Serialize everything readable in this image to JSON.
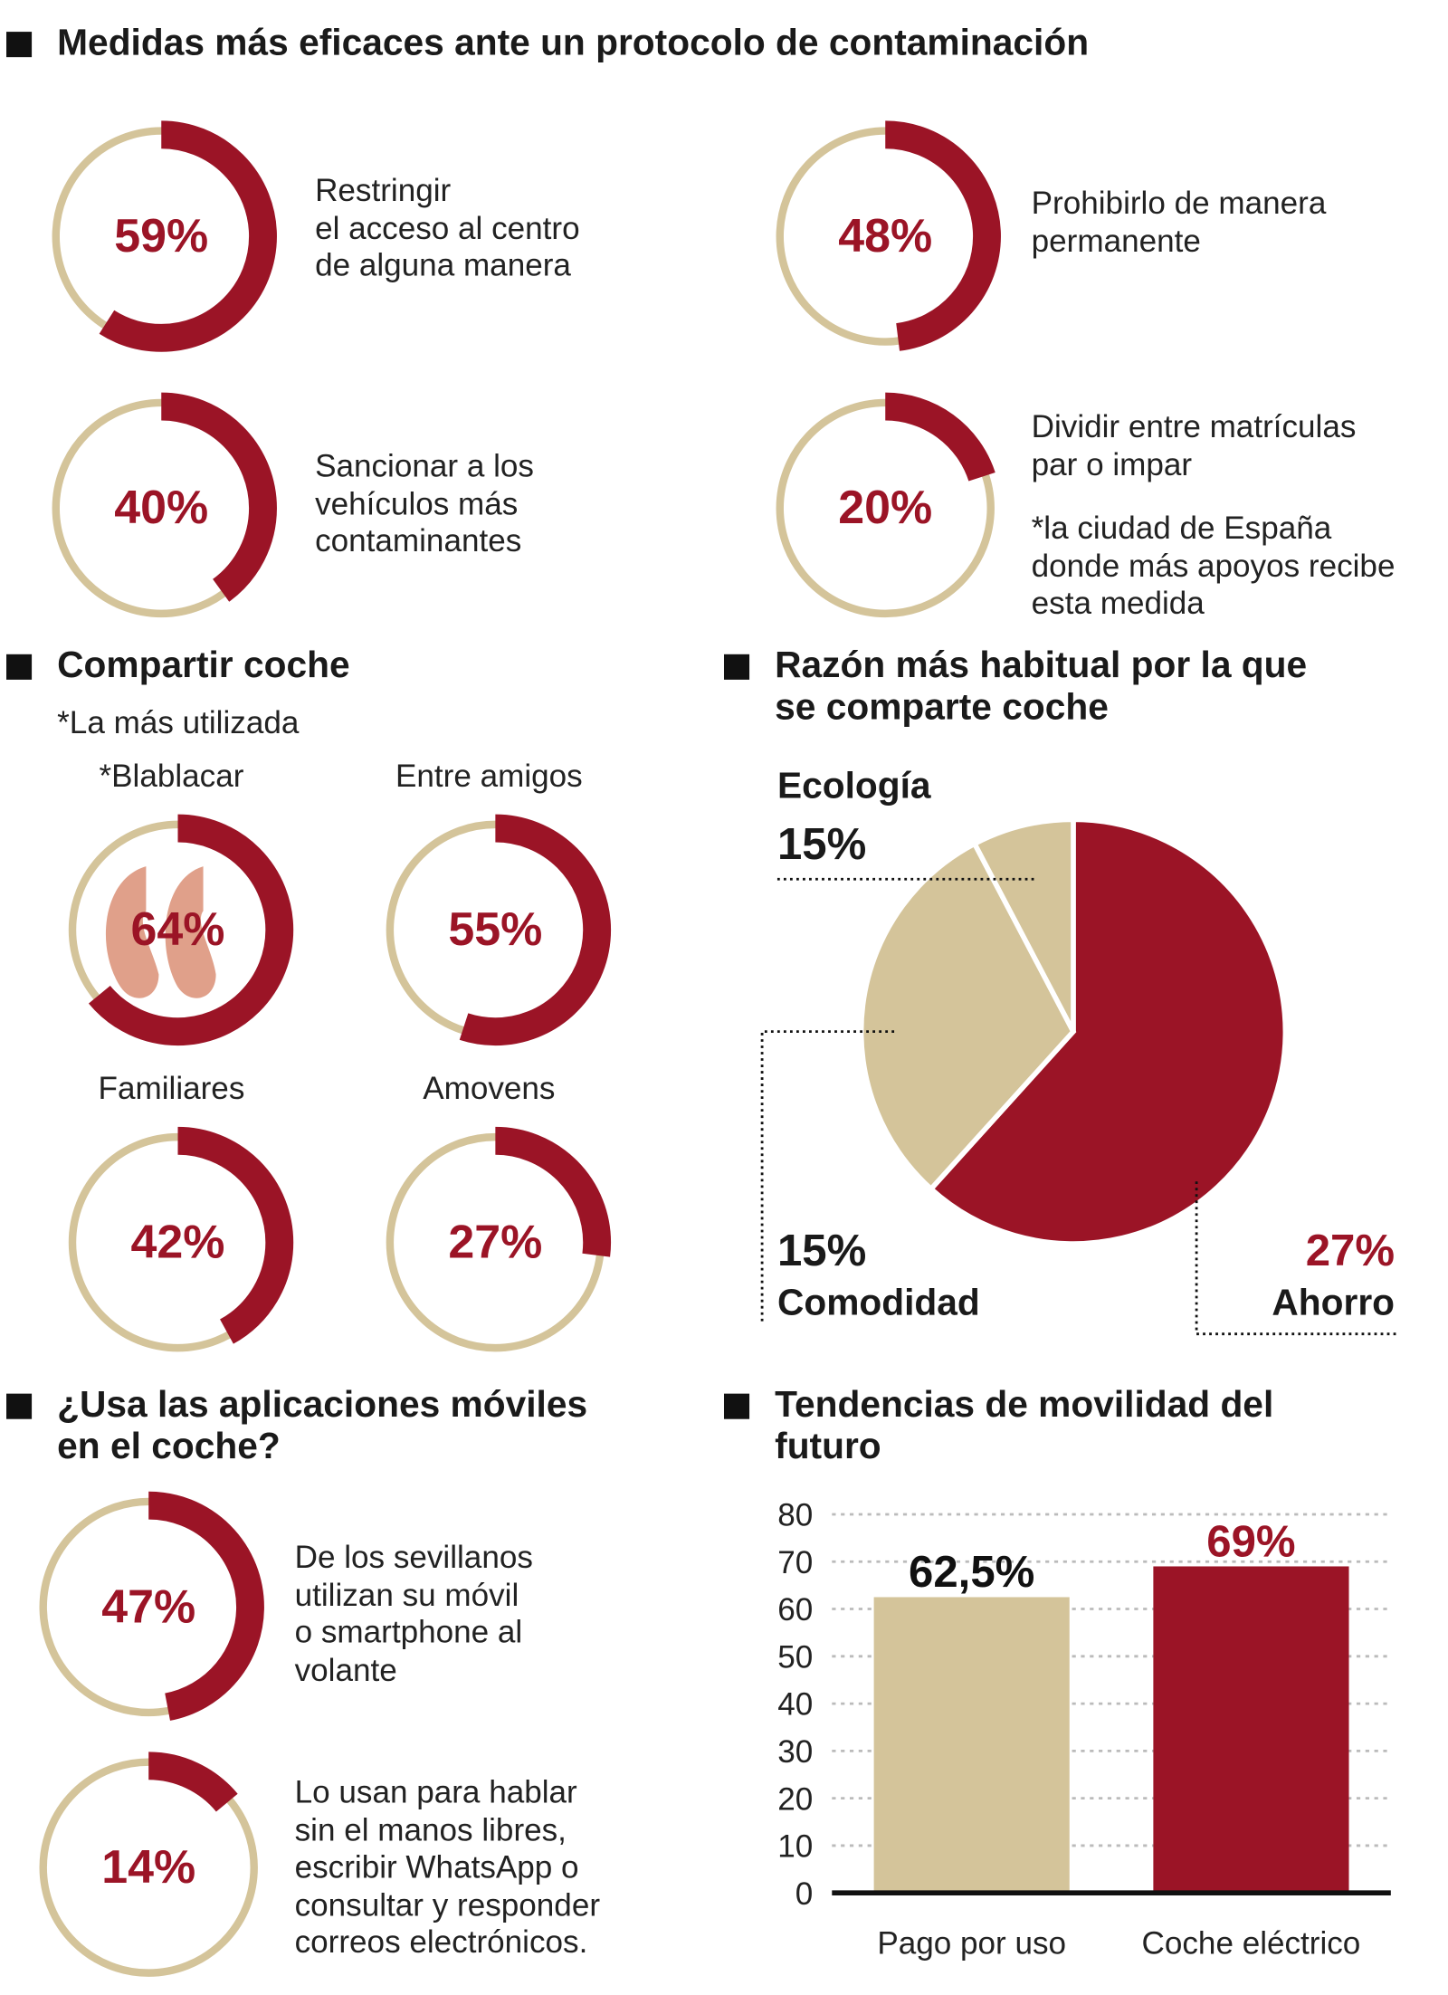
{
  "colors": {
    "accent": "#9b1426",
    "beige": "#d4c49a",
    "logo": "#e0a08a"
  },
  "section1": {
    "title": "Medidas más eficaces ante un protocolo de contaminación",
    "items": [
      {
        "value": 59,
        "label": "59%",
        "text": [
          "Restringir",
          "el acceso al centro",
          "de alguna manera"
        ]
      },
      {
        "value": 48,
        "label": "48%",
        "text": [
          "Prohibirlo de manera",
          "permanente"
        ]
      },
      {
        "value": 40,
        "label": "40%",
        "text": [
          "Sancionar a los",
          "vehículos más",
          "contaminantes"
        ]
      },
      {
        "value": 20,
        "label": "20%",
        "text": [
          "Dividir entre matrículas",
          "par o impar"
        ],
        "note": [
          "*la ciudad de España",
          "donde más apoyos recibe",
          "esta medida"
        ]
      }
    ]
  },
  "section2": {
    "title": "Compartir coche",
    "subtitle": "*La más utilizada",
    "items": [
      {
        "name": "*Blablacar",
        "value": 64,
        "label": "64%"
      },
      {
        "name": "Entre amigos",
        "value": 55,
        "label": "55%"
      },
      {
        "name": "Familiares",
        "value": 42,
        "label": "42%"
      },
      {
        "name": "Amovens",
        "value": 27,
        "label": "27%"
      }
    ]
  },
  "section4": {
    "title": [
      "¿Usa las aplicaciones móviles",
      "en el coche?"
    ],
    "items": [
      {
        "value": 47,
        "label": "47%",
        "text": [
          "De los sevillanos",
          "utilizan su móvil",
          "o smartphone al",
          "volante"
        ]
      },
      {
        "value": 14,
        "label": "14%",
        "text": [
          "Lo usan para hablar",
          "sin el manos libres,",
          "escribir WhatsApp o",
          "consultar y responder",
          "correos electrónicos."
        ]
      }
    ]
  },
  "chart_data": [
    {
      "type": "pie",
      "title": [
        "Razón más habitual por la que",
        "se comparte coche"
      ],
      "slices": [
        {
          "name": "Ahorro",
          "label": "27%",
          "value": 27,
          "visual_share": 0.617,
          "color": "#9b1426"
        },
        {
          "name": "Comodidad",
          "label": "15%",
          "value": 15,
          "visual_share": 0.306,
          "color": "#d4c49a"
        },
        {
          "name": "Ecología",
          "label": "15%",
          "value": 15,
          "visual_share": 0.077,
          "color": "#d4c49a"
        }
      ]
    },
    {
      "type": "bar",
      "title": [
        "Tendencias de movilidad del",
        "futuro"
      ],
      "categories": [
        "Pago por uso",
        "Coche eléctrico"
      ],
      "values": [
        62.5,
        69
      ],
      "value_labels": [
        "62,5%",
        "69%"
      ],
      "colors": [
        "#d4c49a",
        "#9b1426"
      ],
      "ylim": [
        0,
        80
      ],
      "yticks": [
        "0",
        "10",
        "20",
        "30",
        "40",
        "50",
        "60",
        "70",
        "80"
      ],
      "grid": true
    }
  ]
}
